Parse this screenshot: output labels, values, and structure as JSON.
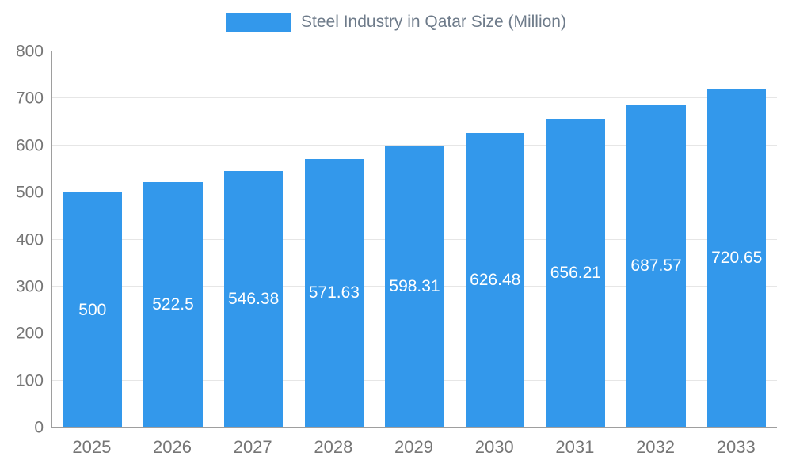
{
  "legend": {
    "label": "Steel Industry in Qatar Size (Million)",
    "swatch_color": "#3398EB"
  },
  "chart_data": {
    "type": "bar",
    "title": "Steel Industry in Qatar Size (Million)",
    "categories": [
      "2025",
      "2026",
      "2027",
      "2028",
      "2029",
      "2030",
      "2031",
      "2032",
      "2033"
    ],
    "values": [
      500,
      522.5,
      546.38,
      571.63,
      598.31,
      626.48,
      656.21,
      687.57,
      720.65
    ],
    "value_labels": [
      "500",
      "522.5",
      "546.38",
      "571.63",
      "598.31",
      "626.48",
      "656.21",
      "687.57",
      "720.65"
    ],
    "xlabel": "",
    "ylabel": "",
    "ylim": [
      0,
      800
    ],
    "yticks": [
      0,
      100,
      200,
      300,
      400,
      500,
      600,
      700,
      800
    ],
    "grid": true,
    "legend_position": "top",
    "bar_color": "#3398EB",
    "value_label_color": "#ffffff",
    "axis_label_color": "#757575"
  }
}
